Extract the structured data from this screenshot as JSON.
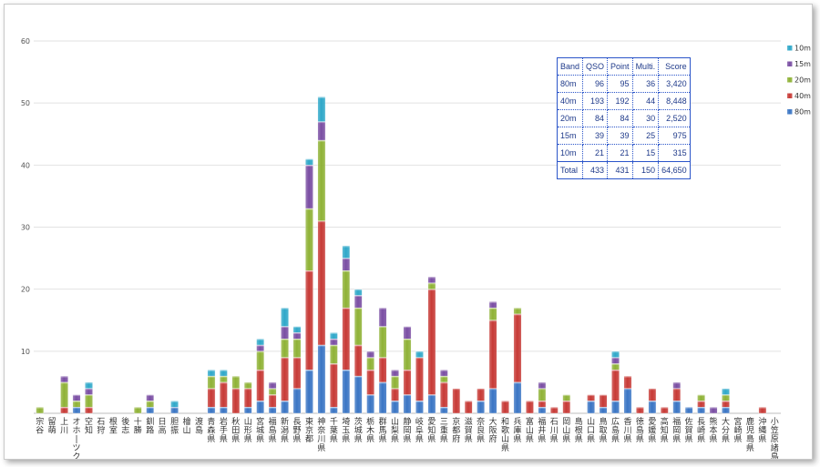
{
  "chart_data": {
    "type": "bar",
    "stacked": true,
    "ylim": [
      0,
      60
    ],
    "yticks": [
      10,
      20,
      30,
      40,
      50,
      60
    ],
    "grid": true,
    "legend_position": "right",
    "categories": [
      "宗谷",
      "留萌",
      "上川",
      "オホーツク",
      "空知",
      "石狩",
      "根室",
      "後志",
      "十勝",
      "釧路",
      "日高",
      "胆振",
      "檜山",
      "渡島",
      "青森県",
      "岩手県",
      "秋田県",
      "山形県",
      "宮城県",
      "福島県",
      "新潟県",
      "長野県",
      "東京都",
      "神奈川県",
      "千葉県",
      "埼玉県",
      "茨城県",
      "栃木県",
      "群馬県",
      "山梨県",
      "静岡県",
      "岐阜県",
      "愛知県",
      "三重県",
      "京都府",
      "滋賀県",
      "奈良県",
      "大阪府",
      "和歌山県",
      "兵庫県",
      "富山県",
      "福井県",
      "石川県",
      "岡山県",
      "島根県",
      "山口県",
      "鳥取県",
      "広島県",
      "香川県",
      "徳島県",
      "愛媛県",
      "高知県",
      "福岡県",
      "佐賀県",
      "長崎県",
      "熊本県",
      "大分県",
      "宮崎県",
      "鹿児島県",
      "沖縄県",
      "小笠原諸島"
    ],
    "series": [
      {
        "name": "80m",
        "color": "#3a75c4",
        "values": [
          0,
          0,
          0,
          1,
          0,
          0,
          0,
          0,
          0,
          1,
          0,
          1,
          0,
          0,
          1,
          1,
          0,
          1,
          2,
          1,
          2,
          4,
          7,
          11,
          1,
          7,
          6,
          3,
          5,
          2,
          3,
          2,
          3,
          1,
          0,
          0,
          2,
          4,
          0,
          5,
          0,
          1,
          0,
          0,
          0,
          2,
          1,
          2,
          4,
          0,
          2,
          0,
          2,
          1,
          1,
          0,
          1,
          0,
          0,
          0,
          0
        ]
      },
      {
        "name": "40m",
        "color": "#c73a36",
        "values": [
          0,
          0,
          1,
          0,
          1,
          0,
          0,
          0,
          0,
          0,
          0,
          0,
          0,
          0,
          3,
          4,
          4,
          3,
          5,
          2,
          7,
          5,
          16,
          20,
          7,
          10,
          5,
          4,
          4,
          2,
          4,
          7,
          17,
          4,
          4,
          2,
          2,
          11,
          2,
          11,
          2,
          1,
          1,
          2,
          0,
          1,
          2,
          5,
          2,
          1,
          2,
          1,
          2,
          0,
          1,
          0,
          1,
          0,
          0,
          1,
          0
        ]
      },
      {
        "name": "20m",
        "color": "#8fb236",
        "values": [
          1,
          0,
          4,
          1,
          2,
          0,
          0,
          0,
          1,
          1,
          0,
          0,
          0,
          0,
          2,
          1,
          2,
          1,
          3,
          1,
          3,
          3,
          10,
          13,
          3,
          6,
          6,
          2,
          5,
          2,
          5,
          0,
          1,
          1,
          0,
          0,
          0,
          2,
          0,
          1,
          0,
          2,
          0,
          1,
          0,
          0,
          0,
          1,
          0,
          0,
          0,
          0,
          0,
          0,
          1,
          0,
          1,
          0,
          0,
          0,
          0
        ]
      },
      {
        "name": "15m",
        "color": "#7a4ea3",
        "values": [
          0,
          0,
          1,
          1,
          1,
          0,
          0,
          0,
          0,
          1,
          0,
          0,
          0,
          0,
          0,
          0,
          0,
          0,
          1,
          1,
          2,
          1,
          7,
          3,
          1,
          2,
          2,
          1,
          3,
          1,
          2,
          0,
          1,
          1,
          0,
          0,
          0,
          1,
          0,
          0,
          0,
          1,
          0,
          0,
          0,
          0,
          0,
          1,
          0,
          0,
          0,
          0,
          1,
          0,
          0,
          1,
          0,
          0,
          0,
          0,
          0
        ]
      },
      {
        "name": "10m",
        "color": "#2fa8c9",
        "values": [
          0,
          0,
          0,
          0,
          1,
          0,
          0,
          0,
          0,
          0,
          0,
          1,
          0,
          0,
          1,
          1,
          0,
          0,
          1,
          0,
          3,
          1,
          1,
          4,
          1,
          2,
          1,
          0,
          0,
          0,
          0,
          1,
          0,
          0,
          0,
          0,
          0,
          0,
          0,
          0,
          0,
          0,
          0,
          0,
          0,
          0,
          0,
          1,
          0,
          0,
          0,
          0,
          0,
          0,
          0,
          0,
          1,
          0,
          0,
          0,
          0
        ]
      }
    ]
  },
  "score_table": {
    "headers": [
      "Band",
      "QSO",
      "Point",
      "Multi.",
      "Score"
    ],
    "rows": [
      [
        "80m",
        "96",
        "95",
        "36",
        "3,420"
      ],
      [
        "40m",
        "193",
        "192",
        "44",
        "8,448"
      ],
      [
        "20m",
        "84",
        "84",
        "30",
        "2,520"
      ],
      [
        "15m",
        "39",
        "39",
        "25",
        "975"
      ],
      [
        "10m",
        "21",
        "21",
        "15",
        "315"
      ]
    ],
    "total": [
      "Total",
      "433",
      "431",
      "150",
      "64,650"
    ]
  }
}
